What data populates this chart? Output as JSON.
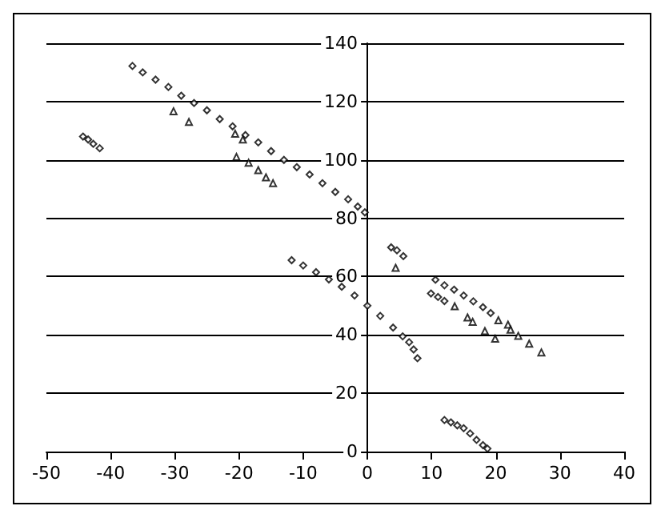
{
  "chart_data": {
    "type": "scatter",
    "marker": "diamond",
    "grid": "y",
    "xlim": [
      -50,
      40
    ],
    "xticks": [
      -50,
      -40,
      -30,
      -20,
      -10,
      0,
      10,
      20,
      30,
      40
    ],
    "ylim": [
      0,
      140
    ],
    "yticks": [
      0,
      20,
      40,
      60,
      80,
      100,
      120,
      140
    ],
    "series": [
      {
        "color": "#000000",
        "x": [
          -36.6,
          -35,
          -33,
          -31,
          -29,
          -27,
          -25,
          -23,
          -21,
          -19,
          -17,
          -15,
          -13,
          -11,
          -9,
          -7,
          -5,
          -3,
          -1.5,
          -0.4,
          -44.3,
          -43.5,
          -42.7,
          -41.7,
          -11.8,
          -10,
          -8,
          -6,
          -4,
          -2,
          0,
          2,
          4,
          5.5,
          6.5,
          7.2,
          7.8,
          3.7,
          4.6,
          5.6,
          10.6,
          12,
          13.5,
          15,
          16.5,
          18,
          19.2,
          9.9,
          11,
          12,
          12,
          13,
          14,
          15,
          16,
          17,
          18,
          18.7
        ],
        "values": [
          132.2,
          130,
          127.5,
          125,
          122,
          119.5,
          117,
          114,
          111.5,
          108.5,
          106,
          103,
          100,
          97.5,
          95,
          92,
          89,
          86.5,
          84,
          82,
          108,
          107,
          105.5,
          104,
          65.6,
          63.8,
          61.5,
          59,
          56.5,
          53.5,
          50,
          46.5,
          42.5,
          39.5,
          37.5,
          35,
          32,
          70,
          69,
          67,
          58.9,
          57,
          55.5,
          53.5,
          51.5,
          49.5,
          47.5,
          54.2,
          53,
          51.6,
          10.8,
          10,
          9,
          8,
          6.2,
          4,
          2.2,
          1
        ]
      },
      {
        "color": "#000000",
        "type": "scatter",
        "marker": "triangle",
        "x": [
          -30.2,
          -27.8,
          -20.6,
          -19.4,
          -20.4,
          -18.5,
          -17,
          -15.8,
          -14.7,
          4.4,
          20.4,
          21.9,
          22.3,
          23.5,
          25.2,
          27.1,
          13.6,
          15.6,
          16.4,
          18.3,
          19.9
        ],
        "values": [
          116.7,
          113,
          109,
          107,
          101,
          99,
          96.5,
          94,
          92,
          63,
          45,
          43.5,
          41.8,
          39.7,
          37,
          34,
          49.8,
          46,
          44.5,
          41.3,
          38.7
        ]
      }
    ]
  }
}
